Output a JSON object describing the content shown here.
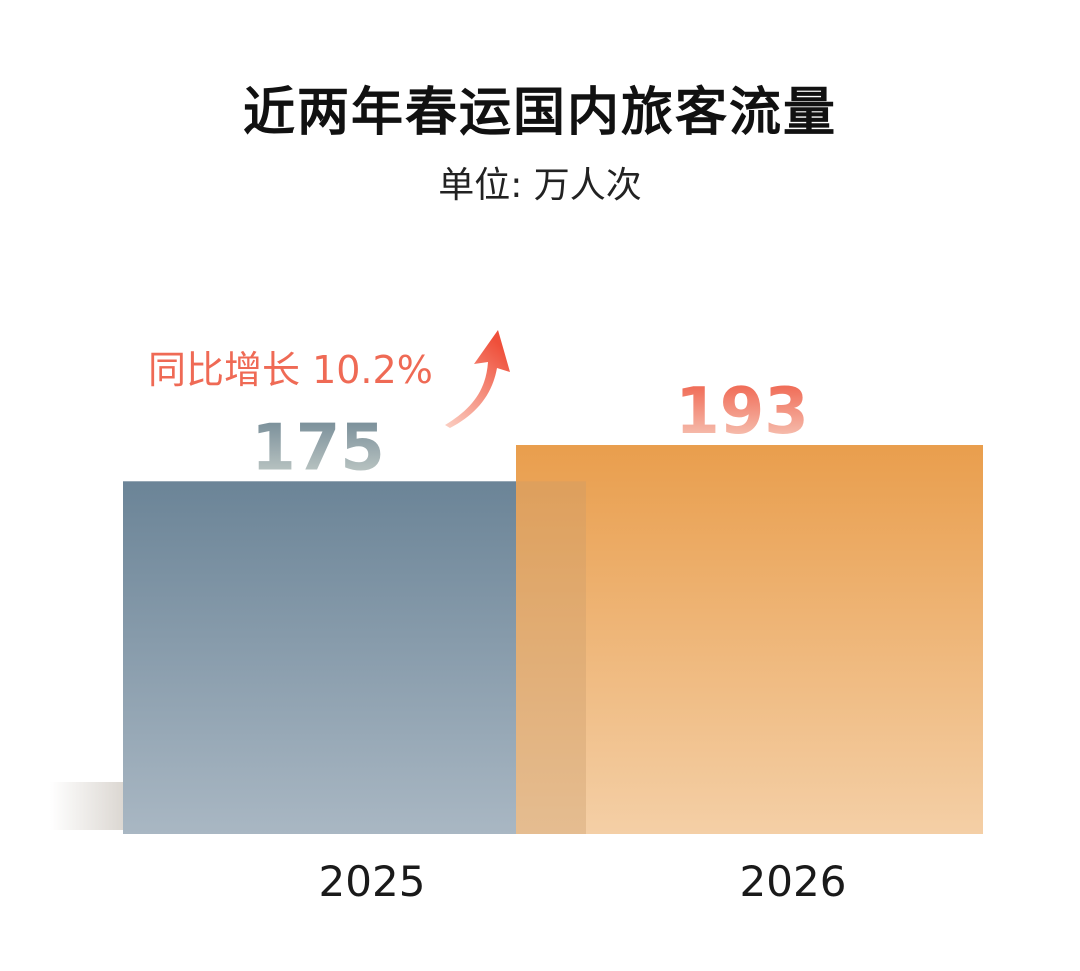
{
  "chart_data": {
    "type": "bar",
    "title": "近两年春运国内旅客流量",
    "subtitle": "单位: 万人次",
    "categories": [
      "2025",
      "2026"
    ],
    "values": [
      175,
      193
    ],
    "value_labels": [
      "175",
      "193"
    ],
    "annotation": "同比增长 10.2%",
    "ylim": [
      0,
      200
    ],
    "grid": false,
    "colors": {
      "bar_2025_top": "#6b8497",
      "bar_2025_bottom": "#a9b7c3",
      "bar_2026_top": "#e99e4d",
      "bar_2026_bottom": "#f4cfa6",
      "label_2025": "#6e8592",
      "label_2026": "#ef5b45",
      "annotation": "#ef6a55"
    }
  }
}
